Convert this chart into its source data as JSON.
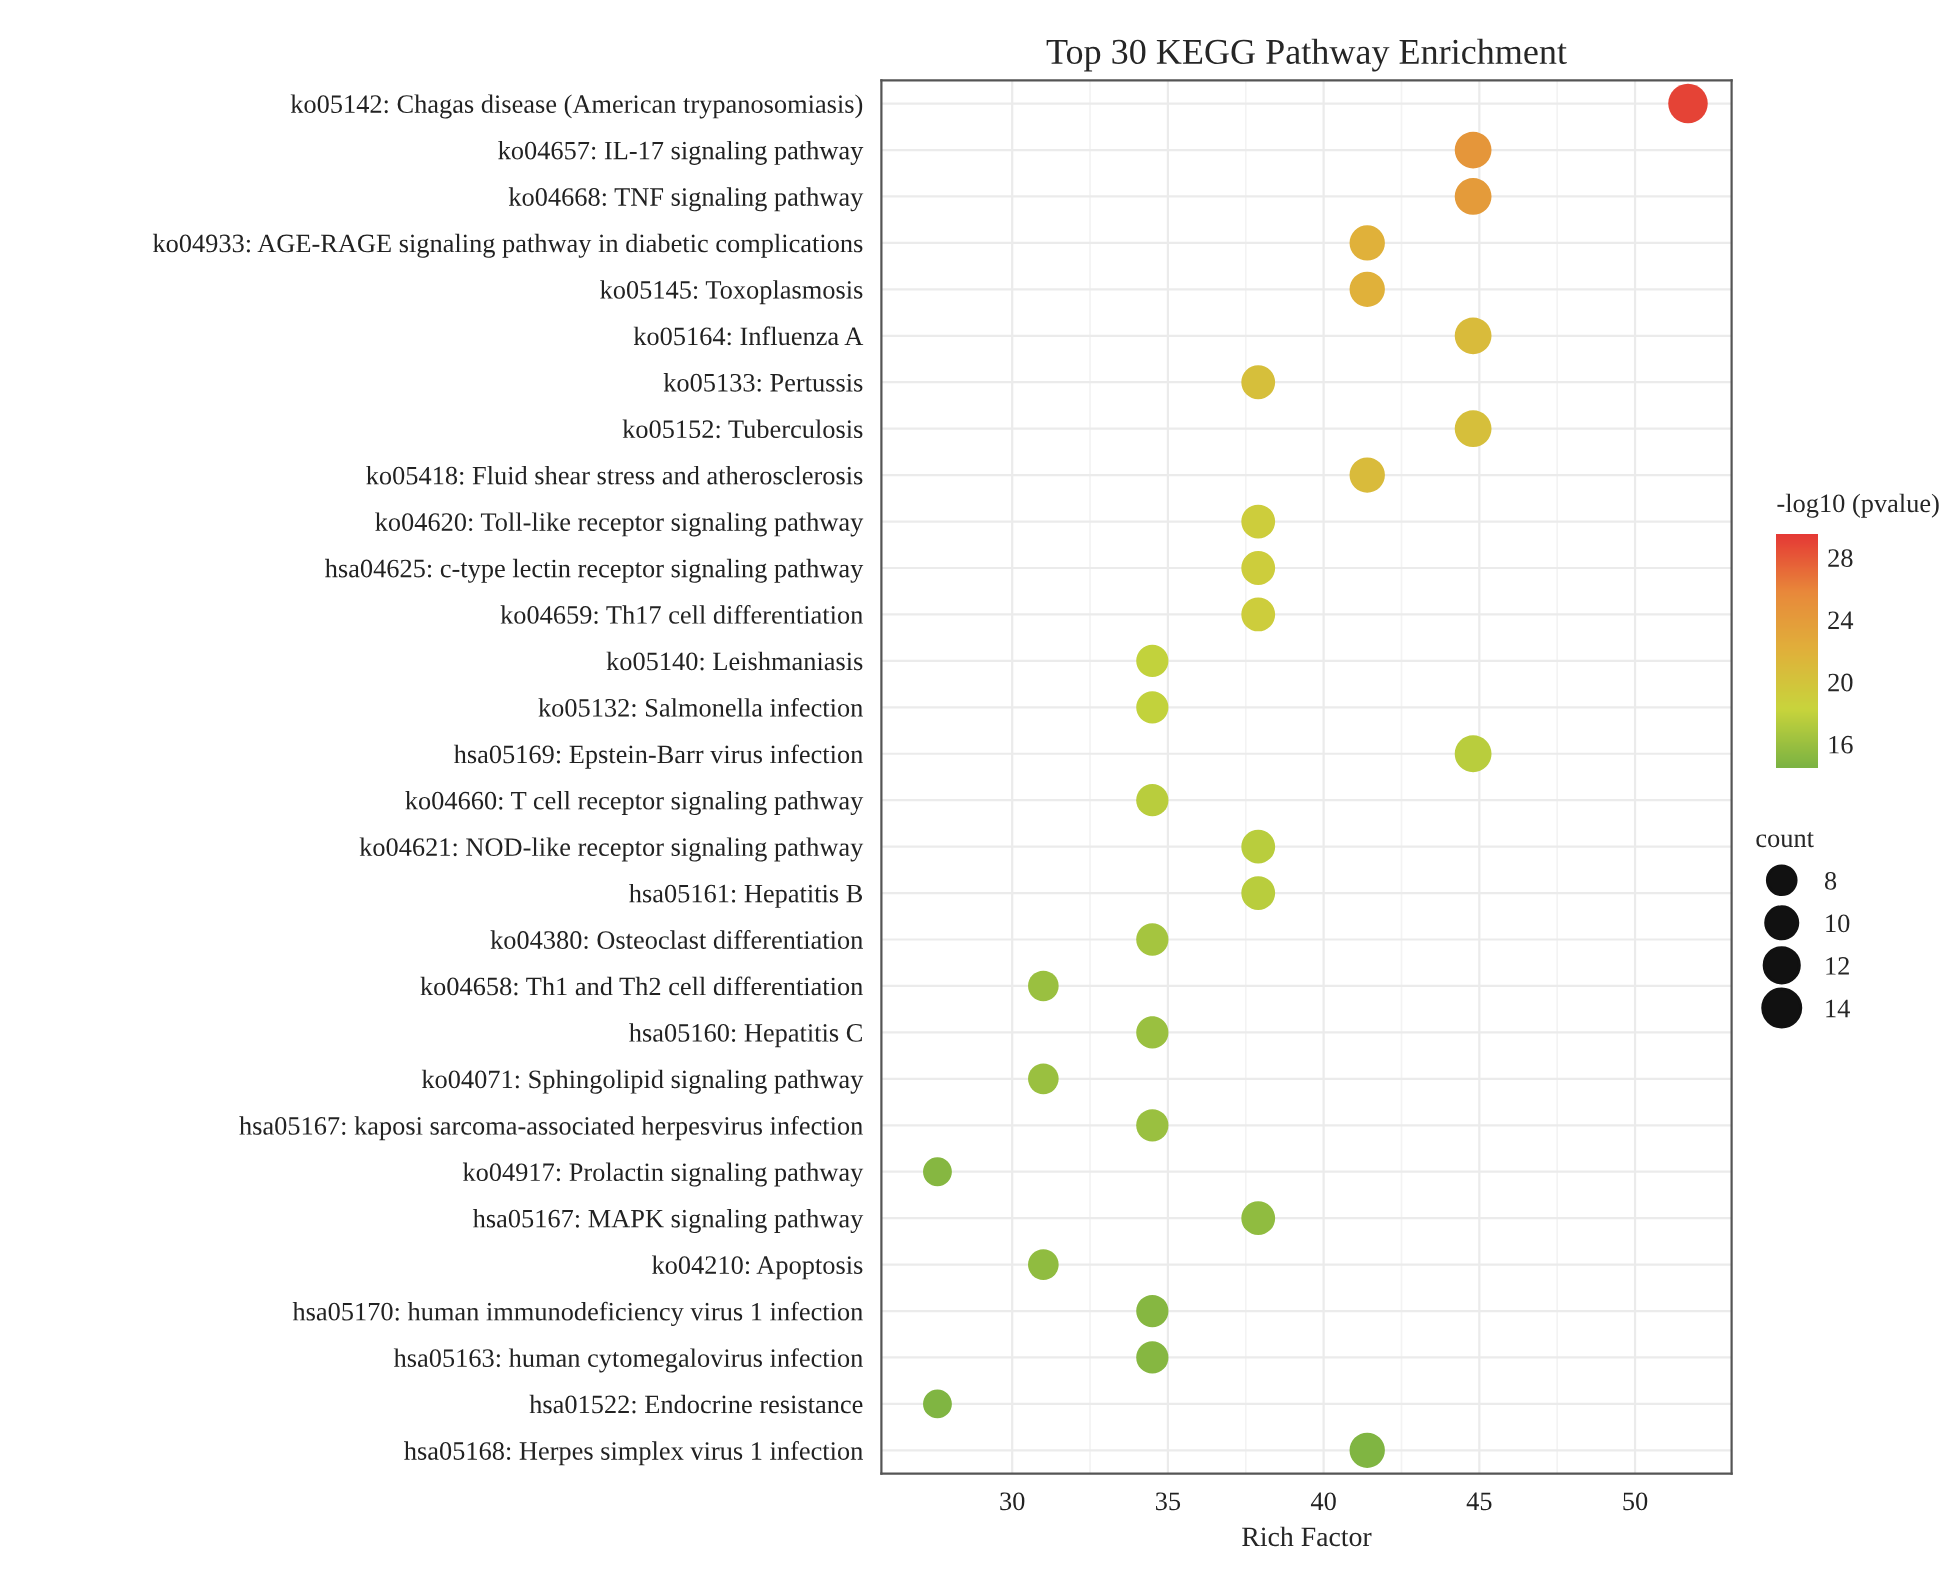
{
  "chart_data": {
    "type": "bubble",
    "title": "Top 30 KEGG Pathway Enrichment",
    "xlabel": "Rich Factor",
    "clabel": "-log10 (pvalue)",
    "legend_title": "count",
    "categories": [
      "ko05142: Chagas disease (American trypanosomiasis)",
      "ko04657: IL-17 signaling pathway",
      "ko04668: TNF signaling pathway",
      "ko04933: AGE-RAGE signaling pathway in diabetic complications",
      "ko05145: Toxoplasmosis",
      "ko05164: Influenza A",
      "ko05133: Pertussis",
      "ko05152: Tuberculosis",
      "ko05418: Fluid shear stress and atherosclerosis",
      "ko04620: Toll-like receptor signaling pathway",
      "hsa04625: c-type lectin receptor signaling pathway",
      "ko04659: Th17 cell differentiation",
      "ko05140: Leishmaniasis",
      "ko05132: Salmonella infection",
      "hsa05169: Epstein-Barr virus infection",
      "ko04660: T cell receptor signaling pathway",
      "ko04621: NOD-like receptor signaling pathway",
      "hsa05161: Hepatitis B",
      "ko04380: Osteoclast differentiation",
      "ko04658: Th1 and Th2 cell differentiation",
      "hsa05160: Hepatitis C",
      "ko04071: Sphingolipid signaling pathway",
      "hsa05167: kaposi sarcoma-associated herpesvirus infection",
      "ko04917: Prolactin signaling pathway",
      "hsa05167: MAPK signaling pathway",
      "ko04210: Apoptosis",
      "hsa05170: human immunodeficiency virus 1 infection",
      "hsa05163: human cytomegalovirus infection",
      "hsa01522: Endocrine resistance",
      "hsa05168: Herpes simplex virus 1 infection"
    ],
    "values": [
      51.7,
      44.8,
      44.8,
      41.4,
      41.4,
      44.8,
      37.9,
      44.8,
      41.4,
      37.9,
      37.9,
      37.9,
      34.5,
      34.5,
      44.8,
      34.5,
      37.9,
      37.9,
      34.5,
      31.0,
      34.5,
      31.0,
      34.5,
      27.6,
      37.9,
      31.0,
      34.5,
      34.5,
      27.6,
      41.4
    ],
    "sizes": [
      15,
      13,
      13,
      12,
      12,
      13,
      11,
      13,
      12,
      11,
      11,
      11,
      10,
      10,
      13,
      10,
      11,
      11,
      10,
      9,
      10,
      9,
      10,
      8,
      11,
      9,
      10,
      10,
      8,
      12
    ],
    "size_legend": [
      8,
      10,
      12,
      14
    ],
    "cvalues": [
      29,
      24.5,
      24,
      22,
      22,
      21,
      20.5,
      20.5,
      21,
      19,
      19,
      19,
      18,
      18,
      17.5,
      17.5,
      17.5,
      17.5,
      16.5,
      16,
      16,
      16,
      16,
      15,
      15.5,
      15.5,
      15,
      15,
      14.7,
      14.7
    ],
    "clim": [
      14.5,
      29.5
    ],
    "cticks": [
      16,
      20,
      24,
      28
    ],
    "xlim": [
      25.8,
      53.1
    ],
    "xticks": [
      30,
      35,
      40,
      45,
      50
    ],
    "orientation": "horizontal",
    "grid": true
  }
}
